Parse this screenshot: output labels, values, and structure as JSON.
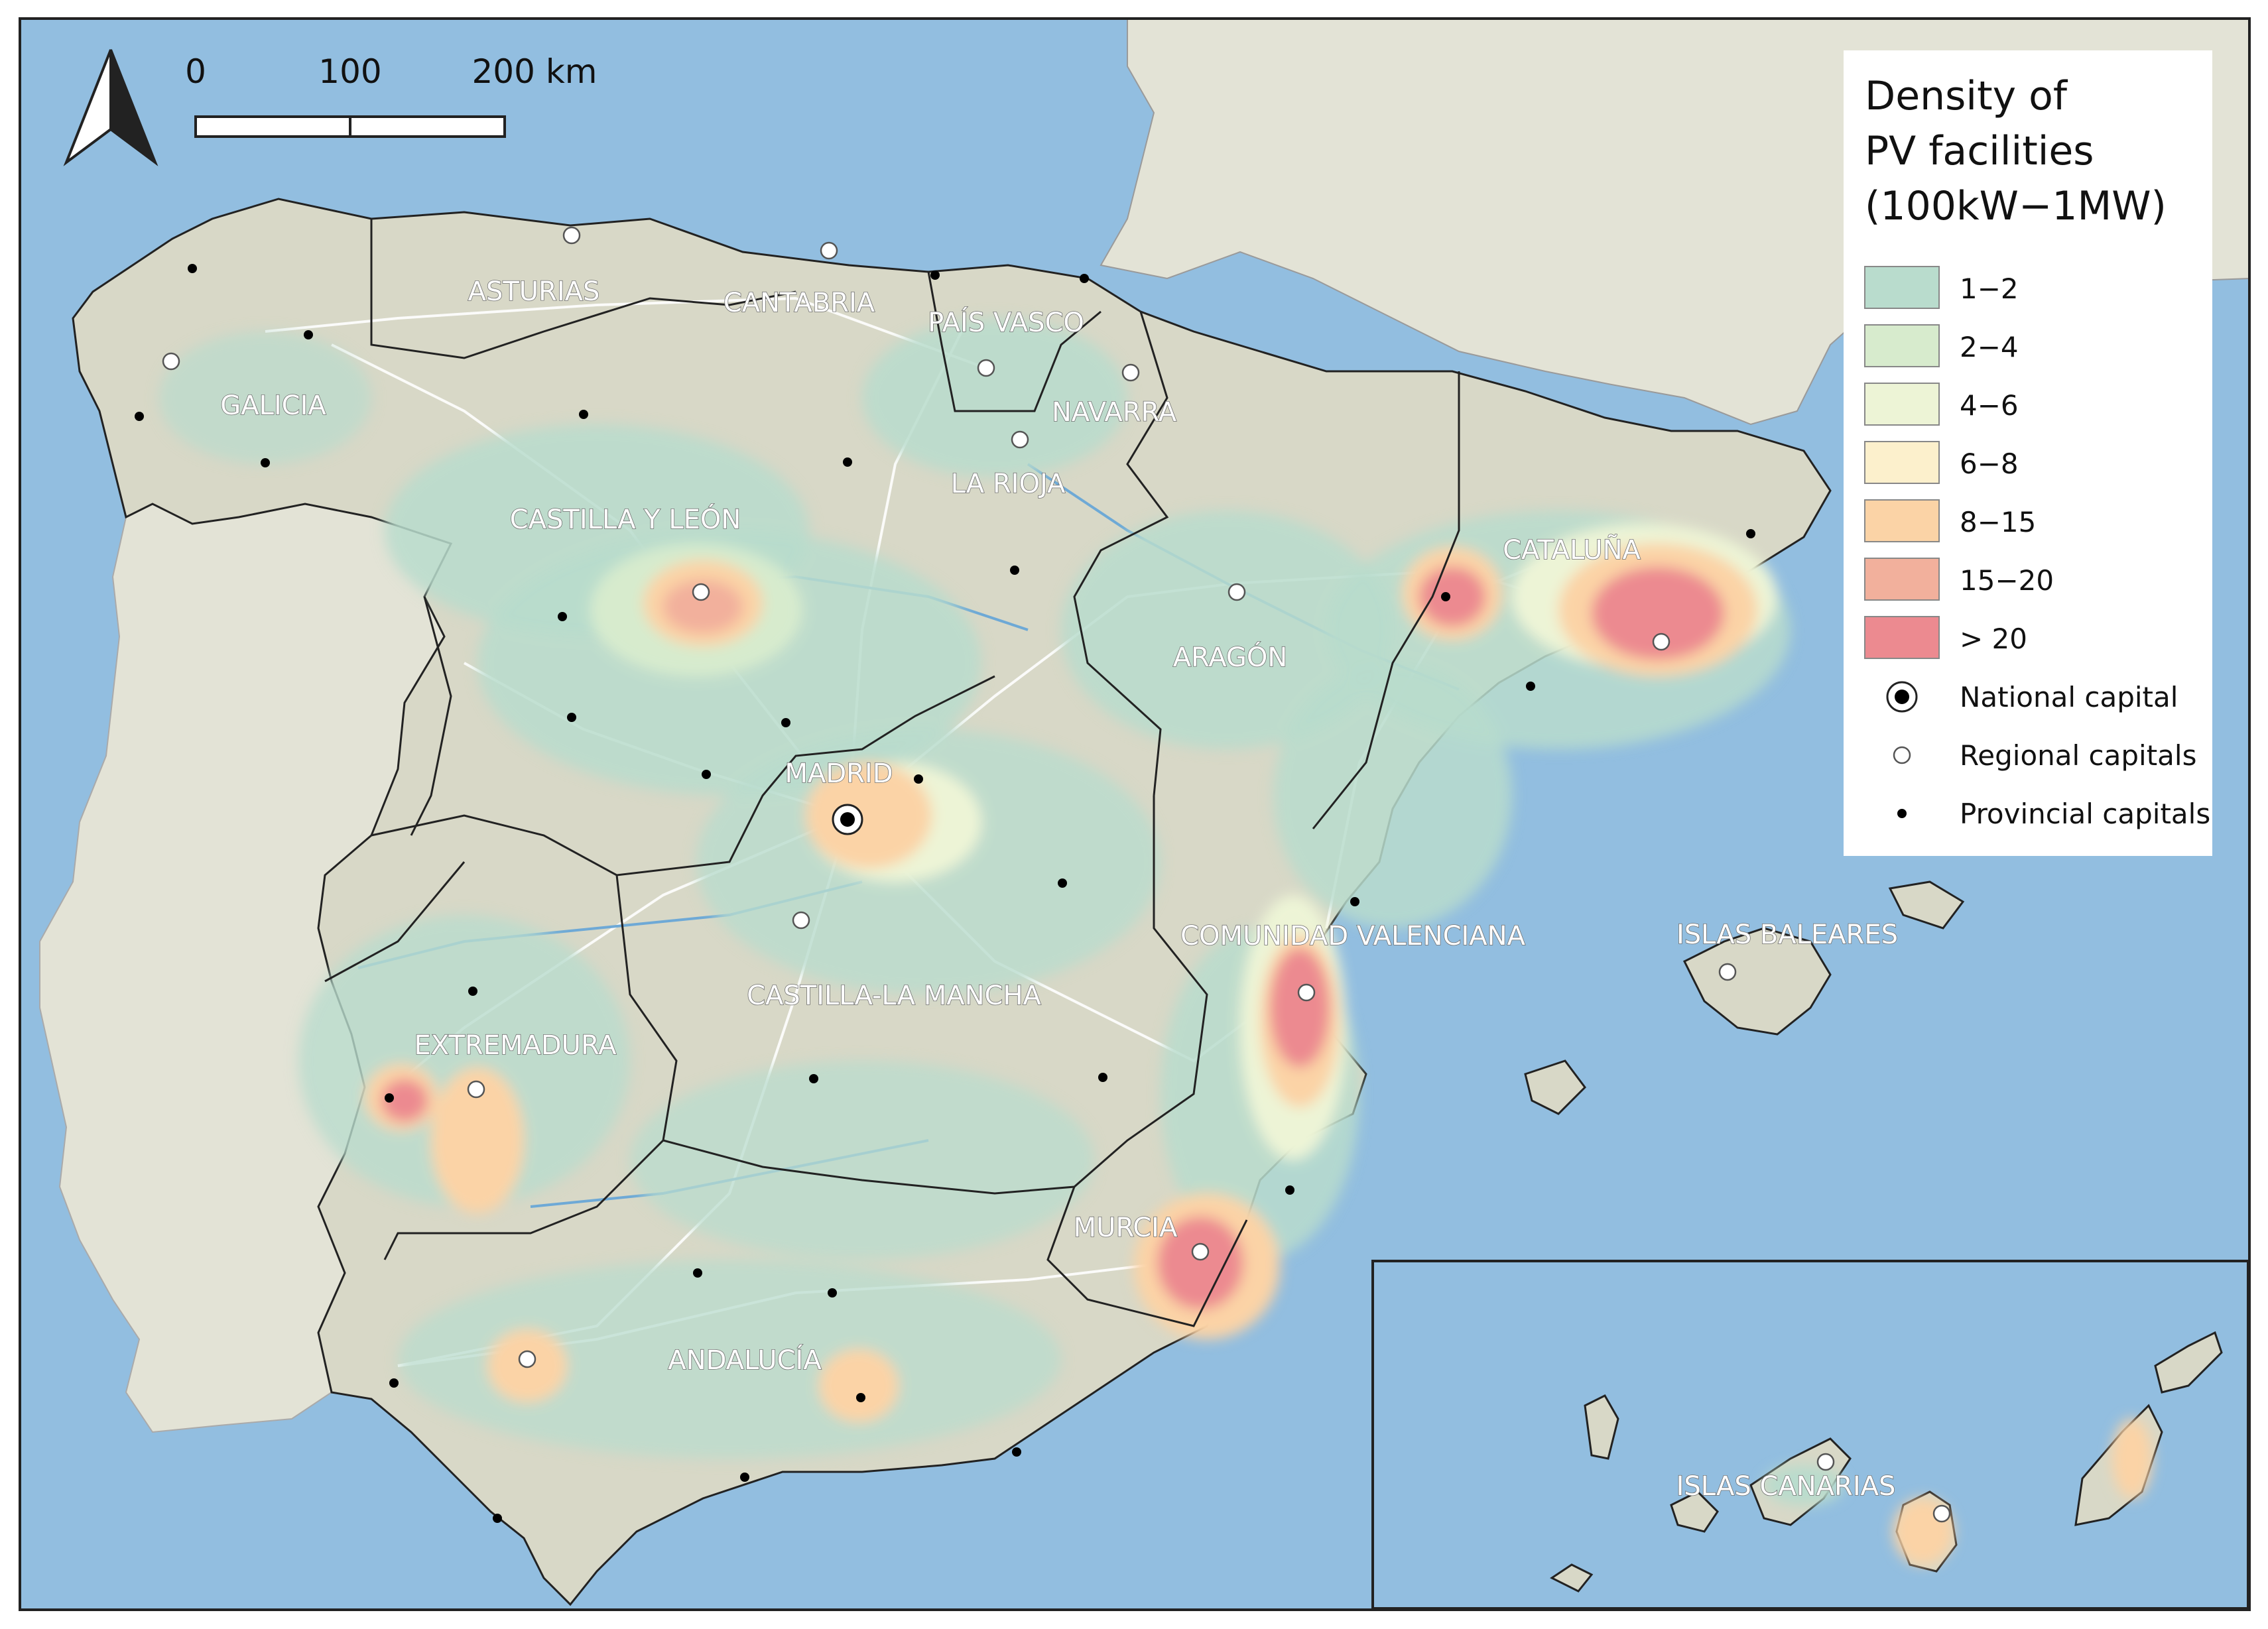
{
  "legend": {
    "title_lines": [
      "Density of",
      "PV facilities",
      "(100kW−1MW)"
    ],
    "classes": [
      {
        "label": "1−2",
        "color": "#b9dccd"
      },
      {
        "label": "2−4",
        "color": "#d7ebcd"
      },
      {
        "label": "4−6",
        "color": "#edf4d6"
      },
      {
        "label": "6−8",
        "color": "#fcf0cc"
      },
      {
        "label": "8−15",
        "color": "#fbd3a6"
      },
      {
        "label": "15−20",
        "color": "#f2b09c"
      },
      {
        "label": "> 20",
        "color": "#ec8a90"
      }
    ],
    "symbols": [
      {
        "label": "National capital",
        "icon": "national-capital-icon"
      },
      {
        "label": "Regional capitals",
        "icon": "regional-capital-icon"
      },
      {
        "label": "Provincial capitals",
        "icon": "provincial-capital-icon"
      }
    ]
  },
  "scale_bar": {
    "labels": [
      "0",
      "100",
      "200 km"
    ]
  },
  "north_arrow": {
    "icon": "north-arrow-icon"
  },
  "regions": [
    "ASTURIAS",
    "CANTABRIA",
    "PAÍS VASCO",
    "GALICIA",
    "NAVARRA",
    "LA RIOJA",
    "CASTILLA Y LEÓN",
    "CATALUÑA",
    "ARAGÓN",
    "MADRID",
    "COMUNIDAD VALENCIANA",
    "ISLAS BALEARES",
    "CASTILLA-LA MANCHA",
    "EXTREMADURA",
    "MURCIA",
    "ANDALUCÍA",
    "ISLAS CANARIAS"
  ],
  "colors": {
    "sea": "#92bee0",
    "land_spain": "#d8d8c7",
    "land_other": "#e3e3d6",
    "roads": "#ffffff",
    "rivers": "#6ea9d6"
  }
}
